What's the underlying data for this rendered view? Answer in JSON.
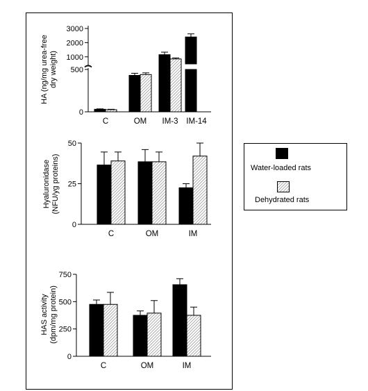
{
  "colors": {
    "water": "#000000",
    "dehydrated": "hatched-gray",
    "frame": "#000000"
  },
  "legend": {
    "items": [
      "Water-loaded rats",
      "Dehydrated rats"
    ]
  },
  "chart_data": [
    {
      "type": "bar",
      "ylabel": "HA (ng/mg urea-free dry weight)",
      "y_axis_break": true,
      "lower_ylim": [
        0,
        500
      ],
      "upper_ylim": [
        500,
        3000
      ],
      "yticks": [
        "0",
        "500",
        "1000",
        "2000",
        "3000"
      ],
      "categories": [
        "C",
        "OM",
        "IM-3",
        "IM-14"
      ],
      "series": [
        {
          "name": "Water-loaded rats",
          "values": [
            30,
            430,
            1150,
            2400
          ],
          "errors": [
            5,
            25,
            180,
            220
          ]
        },
        {
          "name": "Dehydrated rats",
          "values": [
            25,
            440,
            850,
            null
          ],
          "errors": [
            5,
            20,
            70,
            null
          ]
        }
      ],
      "legend": "right"
    },
    {
      "type": "bar",
      "ylabel": "Hyaluronidase (NFU/yg proteins)",
      "ylim": [
        0,
        50
      ],
      "yticks": [
        "0",
        "25",
        "50"
      ],
      "categories": [
        "C",
        "OM",
        "IM"
      ],
      "series": [
        {
          "name": "Water-loaded rats",
          "values": [
            36.5,
            38.5,
            22.5
          ],
          "errors": [
            8,
            7.5,
            2.5
          ]
        },
        {
          "name": "Dehydrated rats",
          "values": [
            39,
            38.5,
            42
          ],
          "errors": [
            5.5,
            6,
            8
          ]
        }
      ],
      "legend": "right"
    },
    {
      "type": "bar",
      "ylabel": "HAS activity (dpm/mg protein)",
      "ylim": [
        0,
        750
      ],
      "yticks": [
        "0",
        "250",
        "500",
        "750"
      ],
      "categories": [
        "C",
        "OM",
        "IM"
      ],
      "series": [
        {
          "name": "Water-loaded rats",
          "values": [
            475,
            375,
            655
          ],
          "errors": [
            40,
            40,
            55
          ]
        },
        {
          "name": "Dehydrated rats",
          "values": [
            475,
            395,
            375
          ],
          "errors": [
            110,
            115,
            75
          ]
        }
      ],
      "legend": "right"
    }
  ]
}
